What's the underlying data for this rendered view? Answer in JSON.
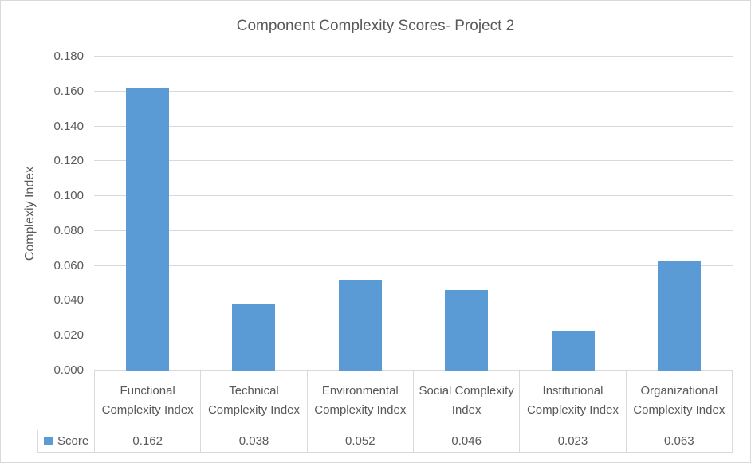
{
  "chart_data": {
    "type": "bar",
    "title": "Component Complexity Scores- Project 2",
    "ylabel": "Complexiy Index",
    "xlabel": "",
    "categories": [
      "Functional Complexity Index",
      "Technical Complexity Index",
      "Environmental Complexity Index",
      "Social Complexity Index",
      "Institutional Complexity Index",
      "Organizational Complexity Index"
    ],
    "series": [
      {
        "name": "Score",
        "values": [
          0.162,
          0.038,
          0.052,
          0.046,
          0.023,
          0.063
        ]
      }
    ],
    "value_labels": [
      "0.162",
      "0.038",
      "0.052",
      "0.046",
      "0.023",
      "0.063"
    ],
    "ylim": [
      0.0,
      0.18
    ],
    "ytick_step": 0.02,
    "ytick_labels": [
      "0.000",
      "0.020",
      "0.040",
      "0.060",
      "0.080",
      "0.100",
      "0.120",
      "0.140",
      "0.160",
      "0.180"
    ],
    "grid": true,
    "legend": {
      "label": "Score",
      "position": "data-table-bottom-left"
    },
    "colors": {
      "bar": "#5B9BD5",
      "grid": "#D9D9D9",
      "text": "#595959",
      "border": "#D9D9D9",
      "background": "#FFFFFF"
    }
  }
}
